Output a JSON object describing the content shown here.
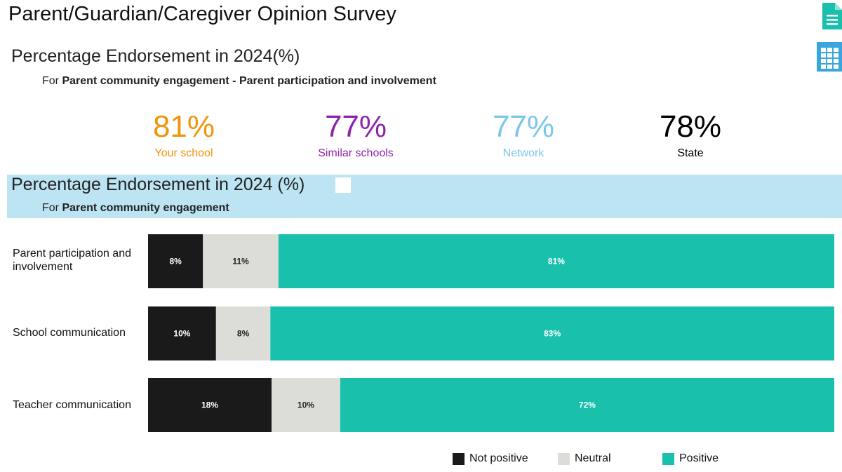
{
  "header": {
    "title": "Parent/Guardian/Caregiver Opinion Survey",
    "doc_icon": "document-icon",
    "grid_icon": "table-grid-icon"
  },
  "summary": {
    "title": "Percentage Endorsement in 2024(%)",
    "subtitle_prefix": "For",
    "subtitle_bold": "Parent community engagement - Parent participation and involvement",
    "kpis": [
      {
        "value": "81%",
        "label": "Your school",
        "color": "#f0940c"
      },
      {
        "value": "77%",
        "label": "Similar schools",
        "color": "#8e24aa"
      },
      {
        "value": "77%",
        "label": "Network",
        "color": "#7cc7ea"
      },
      {
        "value": "78%",
        "label": "State",
        "color": "#000000"
      }
    ]
  },
  "breakdown": {
    "title": "Percentage Endorsement in 2024 (%)",
    "subtitle_prefix": "For",
    "subtitle_bold": "Parent community engagement",
    "band_color": "#bde4f3"
  },
  "chart_data": {
    "type": "bar",
    "orientation": "horizontal",
    "stacked": true,
    "categories": [
      "Parent participation and involvement",
      "School communication",
      "Teacher communication"
    ],
    "series": [
      {
        "name": "Not positive",
        "color": "#1a1a1a",
        "label_color": "#ffffff",
        "values": [
          8,
          10,
          18
        ],
        "labels": [
          "8%",
          "10%",
          "18%"
        ]
      },
      {
        "name": "Neutral",
        "color": "#dcdcd9",
        "label_color": "#222222",
        "values": [
          11,
          8,
          10
        ],
        "labels": [
          "11%",
          "8%",
          "10%"
        ]
      },
      {
        "name": "Positive",
        "color": "#19c0ac",
        "label_color": "#ffffff",
        "values": [
          81,
          83,
          72
        ],
        "labels": [
          "81%",
          "83%",
          "72%"
        ]
      }
    ],
    "xlim": [
      0,
      100
    ],
    "legend": "bottom"
  }
}
